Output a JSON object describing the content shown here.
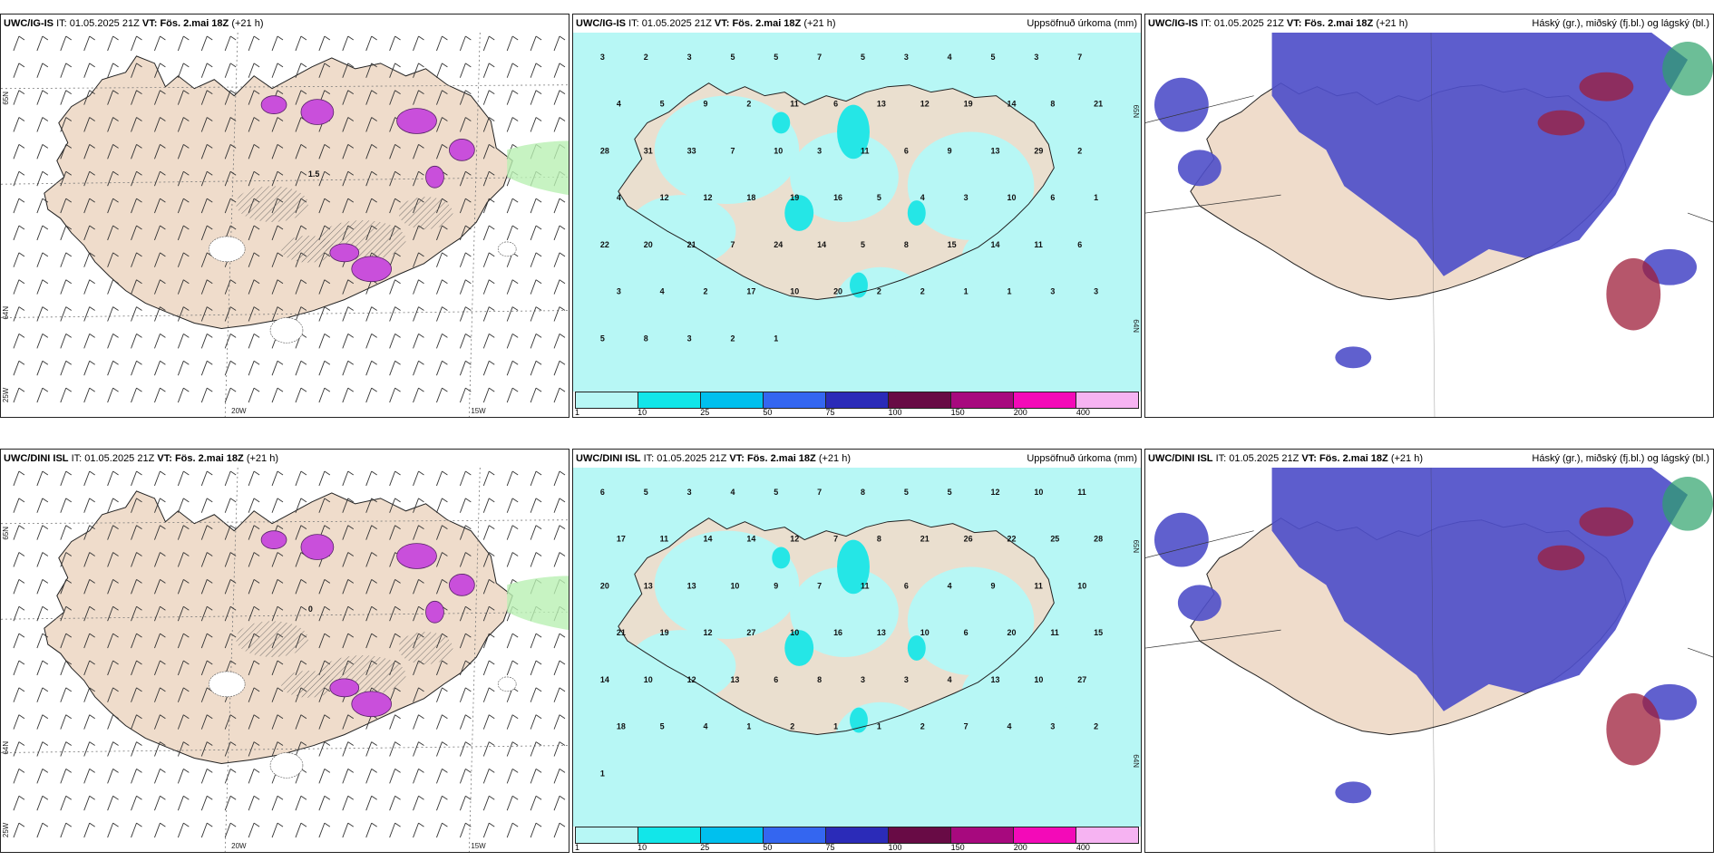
{
  "colors": {
    "land": "#efdccb",
    "precip_light": "#b7f7f5",
    "precip_10": "#25e6e6",
    "cloud_low": "#4f4fc9",
    "cloud_high": "#9e1e3a",
    "cloud_mid": "#2ea36b",
    "snow": "#c94fdb",
    "wind_barb": "#333333"
  },
  "colorbar": {
    "colors": [
      "#b7f7f5",
      "#12e6e9",
      "#00c0ee",
      "#3466f0",
      "#2b2bb8",
      "#680b45",
      "#a7097e",
      "#f30ab8",
      "#f6b3f2"
    ],
    "labels": [
      "1",
      "10",
      "25",
      "50",
      "75",
      "100",
      "150",
      "200",
      "400"
    ]
  },
  "panels": [
    {
      "model": "UWC/IG-IS",
      "it_label": "IT:",
      "it_value": "01.05.2025 21Z",
      "vt_label": "VT:",
      "vt_value": "Fös. 2.mai 18Z",
      "lead": "(+21 h)",
      "title": "",
      "type": "wind",
      "lat_labels": [
        "65N",
        "64N",
        "25W"
      ],
      "lon_labels": [
        "20W",
        "15W"
      ],
      "value_label": "1.5"
    },
    {
      "model": "UWC/IG-IS",
      "it_label": "IT:",
      "it_value": "01.05.2025 21Z",
      "vt_label": "VT:",
      "vt_value": "Fös. 2.mai 18Z",
      "lead": "(+21 h)",
      "title": "Uppsöfnuð úrkoma (mm)",
      "type": "precip",
      "lat_labels": [
        "65N",
        "64N"
      ],
      "numbers": [
        "3",
        "2",
        "3",
        "5",
        "5",
        "7",
        "5",
        "3",
        "4",
        "5",
        "3",
        "7",
        "4",
        "5",
        "9",
        "2",
        "11",
        "6",
        "13",
        "12",
        "19",
        "14",
        "8",
        "21",
        "28",
        "31",
        "33",
        "7",
        "10",
        "3",
        "11",
        "6",
        "9",
        "13",
        "29",
        "2",
        "4",
        "12",
        "12",
        "18",
        "19",
        "16",
        "5",
        "4",
        "3",
        "10",
        "6",
        "1",
        "22",
        "20",
        "21",
        "7",
        "24",
        "14",
        "5",
        "8",
        "15",
        "14",
        "11",
        "6",
        "3",
        "4",
        "2",
        "17",
        "10",
        "20",
        "2",
        "2",
        "1",
        "1",
        "3",
        "3",
        "5",
        "8",
        "3",
        "2",
        "1"
      ]
    },
    {
      "model": "UWC/IG-IS",
      "it_label": "IT:",
      "it_value": "01.05.2025 21Z",
      "vt_label": "VT:",
      "vt_value": "Fös. 2.mai 18Z",
      "lead": "(+21 h)",
      "title": "Háský (gr.), miðský (fj.bl.) og lágský (bl.)",
      "type": "cloud"
    },
    {
      "model": "UWC/DINI ISL",
      "it_label": "IT:",
      "it_value": "01.05.2025 21Z",
      "vt_label": "VT:",
      "vt_value": "Fös. 2.mai 18Z",
      "lead": "(+21 h)",
      "title": "",
      "type": "wind",
      "lat_labels": [
        "65N",
        "64N",
        "25W"
      ],
      "lon_labels": [
        "20W",
        "15W"
      ],
      "value_label": "0"
    },
    {
      "model": "UWC/DINI ISL",
      "it_label": "IT:",
      "it_value": "01.05.2025 21Z",
      "vt_label": "VT:",
      "vt_value": "Fös. 2.mai 18Z",
      "lead": "(+21 h)",
      "title": "Uppsöfnuð úrkoma (mm)",
      "type": "precip",
      "lat_labels": [
        "65N",
        "64N"
      ],
      "numbers": [
        "6",
        "5",
        "3",
        "4",
        "5",
        "7",
        "8",
        "5",
        "5",
        "12",
        "10",
        "11",
        "17",
        "11",
        "14",
        "14",
        "12",
        "7",
        "8",
        "21",
        "26",
        "22",
        "25",
        "28",
        "20",
        "13",
        "13",
        "10",
        "9",
        "7",
        "11",
        "6",
        "4",
        "9",
        "11",
        "10",
        "21",
        "19",
        "12",
        "27",
        "10",
        "16",
        "13",
        "10",
        "6",
        "20",
        "11",
        "15",
        "14",
        "10",
        "12",
        "13",
        "6",
        "8",
        "3",
        "3",
        "4",
        "13",
        "10",
        "27",
        "18",
        "5",
        "4",
        "1",
        "2",
        "1",
        "1",
        "2",
        "7",
        "4",
        "3",
        "2",
        "1"
      ]
    },
    {
      "model": "UWC/DINI ISL",
      "it_label": "IT:",
      "it_value": "01.05.2025 21Z",
      "vt_label": "VT:",
      "vt_value": "Fös. 2.mai 18Z",
      "lead": "(+21 h)",
      "title": "Háský (gr.), miðský (fj.bl.) og lágský (bl.)",
      "type": "cloud"
    }
  ]
}
